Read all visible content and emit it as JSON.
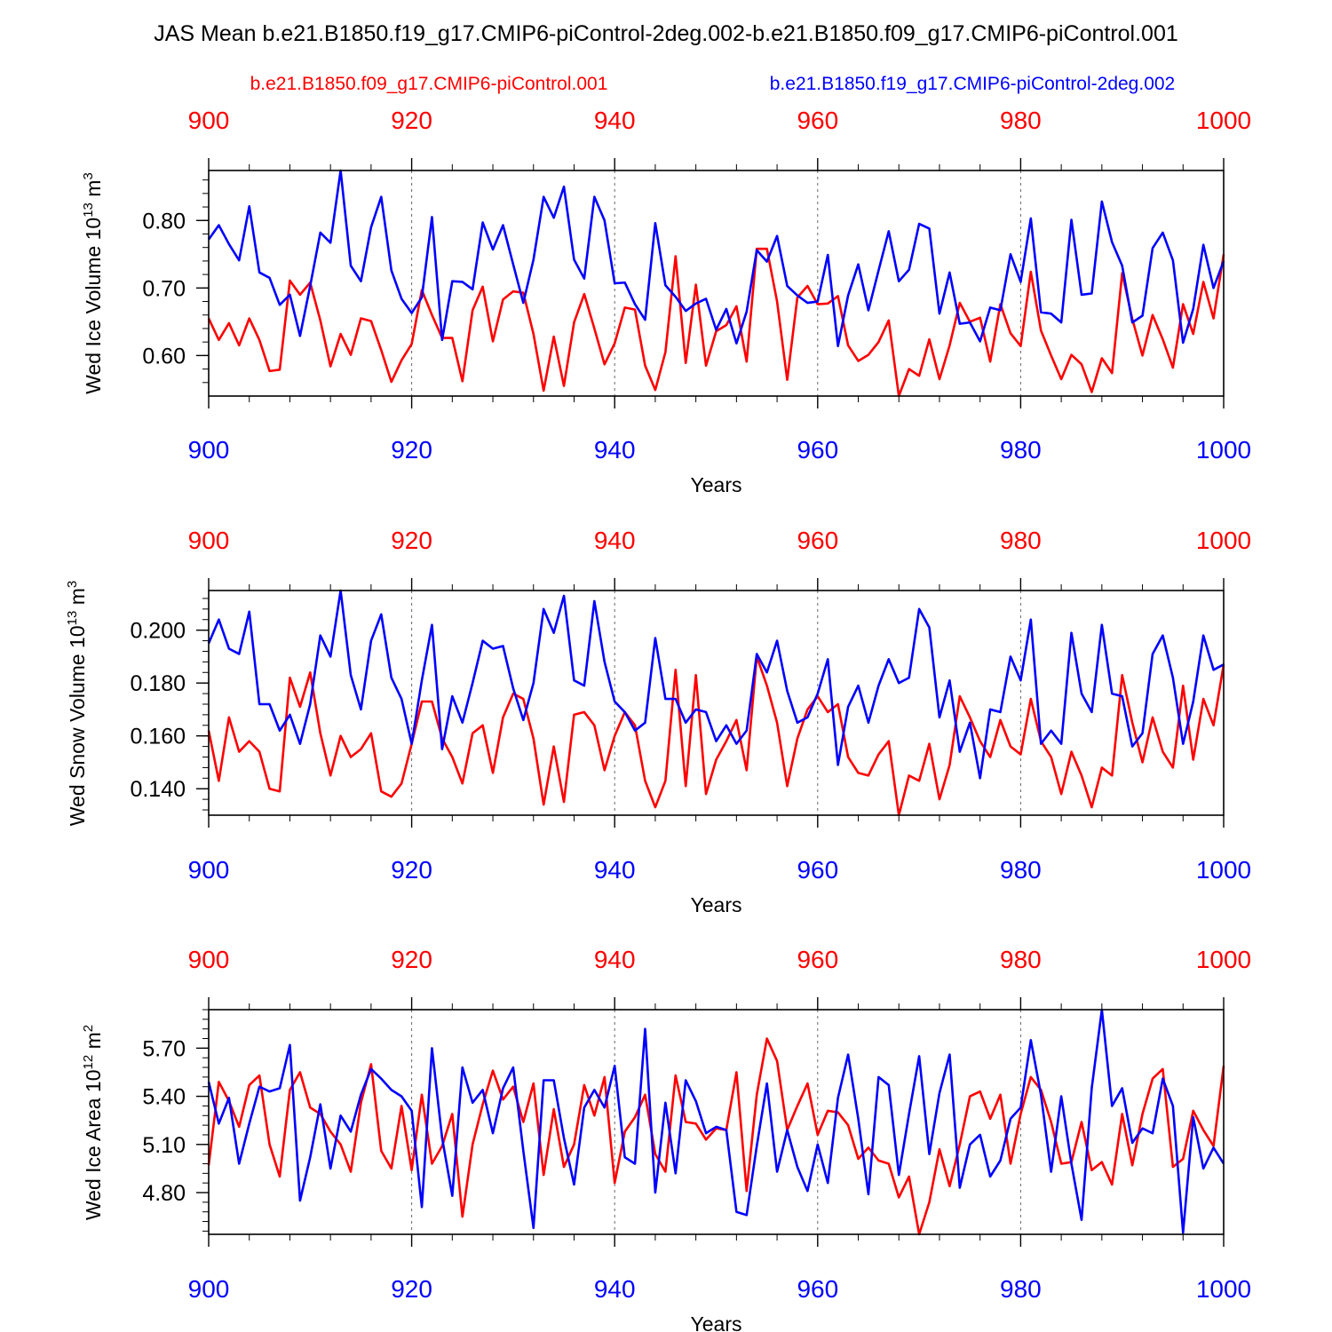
{
  "title": "JAS Mean b.e21.B1850.f19_g17.CMIP6-piControl-2deg.002-b.e21.B1850.f09_g17.CMIP6-piControl.001",
  "colors": {
    "red": "#ff0000",
    "blue": "#0000ff",
    "axis": "#000000",
    "grid": "#666666"
  },
  "legend": {
    "red_label": "b.e21.B1850.f09_g17.CMIP6-piControl.001",
    "blue_label": "b.e21.B1850.f19_g17.CMIP6-piControl-2deg.002"
  },
  "chart_data": [
    {
      "type": "line",
      "ylabel": "Wed Ice Volume",
      "yunit": "10",
      "yunit_exp": "13",
      "yunit_tail": "m",
      "yunit_tail_exp": "3",
      "xlabel": "Years",
      "xlim": [
        900,
        1000
      ],
      "ylim": [
        0.54,
        0.874
      ],
      "xticks": [
        "900",
        "920",
        "940",
        "960",
        "980",
        "1000"
      ],
      "yticks": [
        "0.60",
        "0.70",
        "0.80"
      ],
      "series": [
        {
          "name": "b.e21.B1850.f09_g17.CMIP6-piControl.001",
          "color": "red",
          "x0": 900,
          "values": [
            0.655,
            0.623,
            0.648,
            0.615,
            0.655,
            0.623,
            0.577,
            0.579,
            0.711,
            0.69,
            0.708,
            0.652,
            0.584,
            0.632,
            0.601,
            0.655,
            0.651,
            0.608,
            0.561,
            0.593,
            0.617,
            0.697,
            0.66,
            0.626,
            0.626,
            0.562,
            0.667,
            0.702,
            0.621,
            0.683,
            0.695,
            0.693,
            0.632,
            0.548,
            0.628,
            0.555,
            0.649,
            0.691,
            0.64,
            0.587,
            0.618,
            0.671,
            0.668,
            0.585,
            0.549,
            0.605,
            0.747,
            0.589,
            0.705,
            0.585,
            0.636,
            0.645,
            0.673,
            0.591,
            0.758,
            0.758,
            0.68,
            0.564,
            0.686,
            0.703,
            0.676,
            0.677,
            0.688,
            0.615,
            0.592,
            0.601,
            0.62,
            0.652,
            0.54,
            0.58,
            0.57,
            0.624,
            0.565,
            0.615,
            0.678,
            0.65,
            0.656,
            0.591,
            0.676,
            0.633,
            0.614,
            0.724,
            0.637,
            0.6,
            0.565,
            0.601,
            0.587,
            0.546,
            0.596,
            0.574,
            0.722,
            0.654,
            0.6,
            0.66,
            0.624,
            0.582,
            0.676,
            0.632,
            0.709,
            0.655,
            0.75
          ]
        },
        {
          "name": "b.e21.B1850.f19_g17.CMIP6-piControl-2deg.002",
          "color": "blue",
          "x0": 900,
          "values": [
            0.772,
            0.793,
            0.765,
            0.741,
            0.821,
            0.723,
            0.715,
            0.675,
            0.69,
            0.629,
            0.703,
            0.782,
            0.767,
            0.874,
            0.733,
            0.71,
            0.79,
            0.835,
            0.726,
            0.684,
            0.663,
            0.686,
            0.805,
            0.623,
            0.71,
            0.709,
            0.698,
            0.797,
            0.757,
            0.793,
            0.735,
            0.678,
            0.742,
            0.835,
            0.804,
            0.85,
            0.742,
            0.714,
            0.835,
            0.8,
            0.707,
            0.708,
            0.676,
            0.653,
            0.796,
            0.704,
            0.687,
            0.666,
            0.677,
            0.684,
            0.638,
            0.669,
            0.618,
            0.665,
            0.756,
            0.739,
            0.777,
            0.703,
            0.689,
            0.678,
            0.68,
            0.749,
            0.614,
            0.689,
            0.735,
            0.667,
            0.726,
            0.784,
            0.71,
            0.727,
            0.795,
            0.788,
            0.662,
            0.723,
            0.647,
            0.649,
            0.621,
            0.671,
            0.667,
            0.75,
            0.709,
            0.803,
            0.664,
            0.662,
            0.649,
            0.801,
            0.69,
            0.692,
            0.828,
            0.768,
            0.733,
            0.649,
            0.659,
            0.759,
            0.782,
            0.741,
            0.619,
            0.669,
            0.764,
            0.7,
            0.74
          ]
        }
      ]
    },
    {
      "type": "line",
      "ylabel": "Wed Snow Volume",
      "yunit": "10",
      "yunit_exp": "13",
      "yunit_tail": "m",
      "yunit_tail_exp": "3",
      "xlabel": "Years",
      "xlim": [
        900,
        1000
      ],
      "ylim": [
        0.13,
        0.215
      ],
      "xticks": [
        "900",
        "920",
        "940",
        "960",
        "980",
        "1000"
      ],
      "yticks": [
        "0.140",
        "0.160",
        "0.180",
        "0.200"
      ],
      "series": [
        {
          "name": "b.e21.B1850.f09_g17.CMIP6-piControl.001",
          "color": "red",
          "x0": 900,
          "values": [
            0.162,
            0.143,
            0.167,
            0.154,
            0.158,
            0.154,
            0.14,
            0.139,
            0.182,
            0.171,
            0.184,
            0.161,
            0.145,
            0.16,
            0.152,
            0.155,
            0.161,
            0.139,
            0.137,
            0.142,
            0.157,
            0.173,
            0.173,
            0.159,
            0.152,
            0.142,
            0.161,
            0.164,
            0.146,
            0.167,
            0.176,
            0.174,
            0.159,
            0.134,
            0.156,
            0.135,
            0.168,
            0.169,
            0.164,
            0.147,
            0.16,
            0.169,
            0.164,
            0.143,
            0.133,
            0.143,
            0.185,
            0.141,
            0.183,
            0.138,
            0.151,
            0.158,
            0.166,
            0.147,
            0.19,
            0.179,
            0.165,
            0.141,
            0.159,
            0.17,
            0.175,
            0.169,
            0.172,
            0.152,
            0.146,
            0.145,
            0.153,
            0.158,
            0.13,
            0.145,
            0.143,
            0.157,
            0.136,
            0.149,
            0.175,
            0.167,
            0.158,
            0.152,
            0.166,
            0.156,
            0.153,
            0.174,
            0.158,
            0.152,
            0.138,
            0.154,
            0.145,
            0.133,
            0.148,
            0.145,
            0.183,
            0.165,
            0.15,
            0.167,
            0.154,
            0.148,
            0.179,
            0.151,
            0.174,
            0.164,
            0.187
          ]
        },
        {
          "name": "b.e21.B1850.f19_g17.CMIP6-piControl-2deg.002",
          "color": "blue",
          "x0": 900,
          "values": [
            0.195,
            0.204,
            0.193,
            0.191,
            0.207,
            0.172,
            0.172,
            0.162,
            0.168,
            0.157,
            0.172,
            0.198,
            0.19,
            0.215,
            0.183,
            0.17,
            0.196,
            0.206,
            0.182,
            0.174,
            0.157,
            0.181,
            0.202,
            0.155,
            0.175,
            0.165,
            0.18,
            0.196,
            0.193,
            0.194,
            0.178,
            0.166,
            0.18,
            0.208,
            0.199,
            0.213,
            0.181,
            0.179,
            0.211,
            0.188,
            0.173,
            0.169,
            0.162,
            0.165,
            0.197,
            0.174,
            0.174,
            0.165,
            0.17,
            0.169,
            0.158,
            0.164,
            0.157,
            0.162,
            0.191,
            0.184,
            0.196,
            0.177,
            0.165,
            0.167,
            0.176,
            0.189,
            0.149,
            0.171,
            0.179,
            0.165,
            0.179,
            0.189,
            0.18,
            0.182,
            0.208,
            0.201,
            0.167,
            0.181,
            0.154,
            0.165,
            0.144,
            0.17,
            0.169,
            0.19,
            0.181,
            0.204,
            0.157,
            0.162,
            0.157,
            0.199,
            0.176,
            0.169,
            0.202,
            0.176,
            0.175,
            0.156,
            0.161,
            0.191,
            0.198,
            0.182,
            0.157,
            0.173,
            0.198,
            0.185,
            0.187
          ]
        }
      ]
    },
    {
      "type": "line",
      "ylabel": "Wed Ice Area",
      "yunit": "10",
      "yunit_exp": "12",
      "yunit_tail": "m",
      "yunit_tail_exp": "2",
      "xlabel": "Years",
      "xlim": [
        900,
        1000
      ],
      "ylim": [
        4.54,
        5.94
      ],
      "xticks": [
        "900",
        "920",
        "940",
        "960",
        "980",
        "1000"
      ],
      "yticks": [
        "4.80",
        "5.10",
        "5.40",
        "5.70"
      ],
      "series": [
        {
          "name": "b.e21.B1850.f09_g17.CMIP6-piControl.001",
          "color": "red",
          "x0": 900,
          "values": [
            4.97,
            5.49,
            5.37,
            5.21,
            5.47,
            5.53,
            5.1,
            4.9,
            5.44,
            5.55,
            5.33,
            5.29,
            5.18,
            5.1,
            4.93,
            5.36,
            5.6,
            5.06,
            4.95,
            5.34,
            4.94,
            5.41,
            4.98,
            5.09,
            5.29,
            4.65,
            5.1,
            5.35,
            5.56,
            5.38,
            5.46,
            5.24,
            5.48,
            4.91,
            5.32,
            4.96,
            5.1,
            5.47,
            5.28,
            5.52,
            4.86,
            5.18,
            5.27,
            5.41,
            5.04,
            4.93,
            5.53,
            5.24,
            5.23,
            5.13,
            5.2,
            5.19,
            5.55,
            4.81,
            5.41,
            5.76,
            5.62,
            5.19,
            5.34,
            5.48,
            5.16,
            5.31,
            5.3,
            5.22,
            5.01,
            5.08,
            5.0,
            4.98,
            4.77,
            4.9,
            4.54,
            4.74,
            5.07,
            4.84,
            5.1,
            5.4,
            5.43,
            5.26,
            5.41,
            4.98,
            5.29,
            5.52,
            5.44,
            5.24,
            4.98,
            4.99,
            5.24,
            4.94,
            4.99,
            4.85,
            5.29,
            4.97,
            5.29,
            5.51,
            5.57,
            4.96,
            5.01,
            5.31,
            5.19,
            5.09,
            5.59
          ]
        },
        {
          "name": "b.e21.B1850.f19_g17.CMIP6-piControl-2deg.002",
          "color": "blue",
          "x0": 900,
          "values": [
            5.49,
            5.23,
            5.39,
            4.98,
            5.23,
            5.46,
            5.43,
            5.45,
            5.72,
            4.75,
            5.02,
            5.35,
            4.95,
            5.28,
            5.18,
            5.41,
            5.57,
            5.51,
            5.44,
            5.4,
            5.31,
            4.71,
            5.7,
            5.14,
            4.78,
            5.58,
            5.36,
            5.44,
            5.17,
            5.45,
            5.58,
            5.06,
            4.58,
            5.5,
            5.5,
            5.14,
            4.85,
            5.33,
            5.44,
            5.33,
            5.59,
            5.02,
            4.98,
            5.82,
            4.8,
            5.36,
            4.92,
            5.5,
            5.37,
            5.17,
            5.21,
            5.19,
            4.68,
            4.66,
            5.09,
            5.48,
            4.93,
            5.19,
            4.96,
            4.81,
            5.1,
            4.86,
            5.39,
            5.66,
            5.26,
            4.79,
            5.52,
            5.47,
            4.91,
            5.29,
            5.65,
            5.04,
            5.42,
            5.66,
            4.83,
            5.1,
            5.16,
            4.9,
            5.0,
            5.26,
            5.33,
            5.75,
            5.41,
            4.93,
            5.4,
            4.98,
            4.63,
            5.45,
            5.94,
            5.34,
            5.45,
            5.11,
            5.2,
            5.17,
            5.51,
            5.34,
            4.55,
            5.27,
            4.95,
            5.08,
            4.98
          ]
        }
      ]
    }
  ]
}
